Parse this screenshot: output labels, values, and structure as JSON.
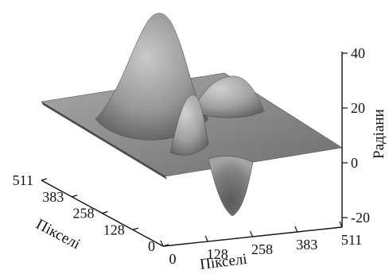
{
  "chart_data": {
    "type": "surface",
    "xlabel": "Пікселі",
    "ylabel": "Пікселі",
    "zlabel": "Радіани",
    "x_ticks": [
      "0",
      "128",
      "258",
      "383",
      "511"
    ],
    "y_ticks": [
      "0",
      "128",
      "258",
      "383",
      "511"
    ],
    "z_ticks": [
      "-20",
      "0",
      "20",
      "40"
    ],
    "x_range": [
      0,
      511
    ],
    "y_range": [
      0,
      511
    ],
    "z_range": [
      -20,
      40
    ],
    "grid": false,
    "legend": "none",
    "surface_color": "#8c8c8c",
    "peaks": [
      {
        "x": 150,
        "y": 330,
        "z": 40
      },
      {
        "x": 290,
        "y": 250,
        "z": 26
      },
      {
        "x": 230,
        "y": 150,
        "z": 20
      },
      {
        "x": 330,
        "y": 160,
        "z": -18
      }
    ]
  }
}
